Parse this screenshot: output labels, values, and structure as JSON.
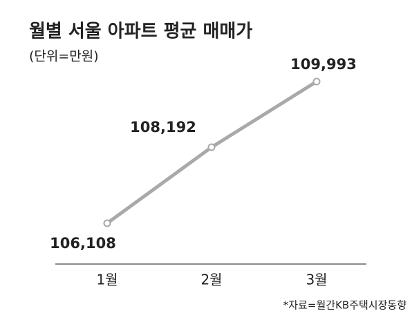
{
  "chart_data": {
    "type": "line",
    "title": "월별 서울 아파트 평균 매매가",
    "subtitle": "(단위=만원)",
    "categories": [
      "1월",
      "2월",
      "3월"
    ],
    "values": [
      106108,
      108192,
      109993
    ],
    "value_labels": [
      "106,108",
      "108,192",
      "109,993"
    ],
    "color": "#a9a9a9",
    "source": "*자료=월간KB주택시장동향"
  }
}
